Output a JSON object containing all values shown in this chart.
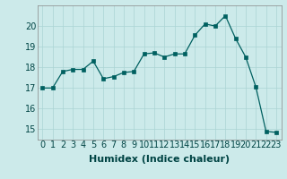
{
  "x": [
    0,
    1,
    2,
    3,
    4,
    5,
    6,
    7,
    8,
    9,
    10,
    11,
    12,
    13,
    14,
    15,
    16,
    17,
    18,
    19,
    20,
    21,
    22,
    23
  ],
  "y": [
    17.0,
    17.0,
    17.8,
    17.9,
    17.9,
    18.3,
    17.45,
    17.55,
    17.75,
    17.8,
    18.65,
    18.7,
    18.5,
    18.65,
    18.65,
    19.55,
    20.1,
    20.0,
    20.5,
    19.4,
    18.5,
    17.05,
    14.9,
    14.85
  ],
  "xlabel": "Humidex (Indice chaleur)",
  "xlim": [
    -0.5,
    23.5
  ],
  "ylim": [
    14.5,
    21.0
  ],
  "yticks": [
    15,
    16,
    17,
    18,
    19,
    20
  ],
  "xticks": [
    0,
    1,
    2,
    3,
    4,
    5,
    6,
    7,
    8,
    9,
    10,
    11,
    12,
    13,
    14,
    15,
    16,
    17,
    18,
    19,
    20,
    21,
    22,
    23
  ],
  "line_color": "#006060",
  "marker_color": "#006060",
  "bg_color": "#cceaea",
  "grid_color": "#aad4d4",
  "xlabel_fontsize": 8,
  "tick_fontsize": 7,
  "tick_color": "#004444",
  "spine_color": "#888888"
}
